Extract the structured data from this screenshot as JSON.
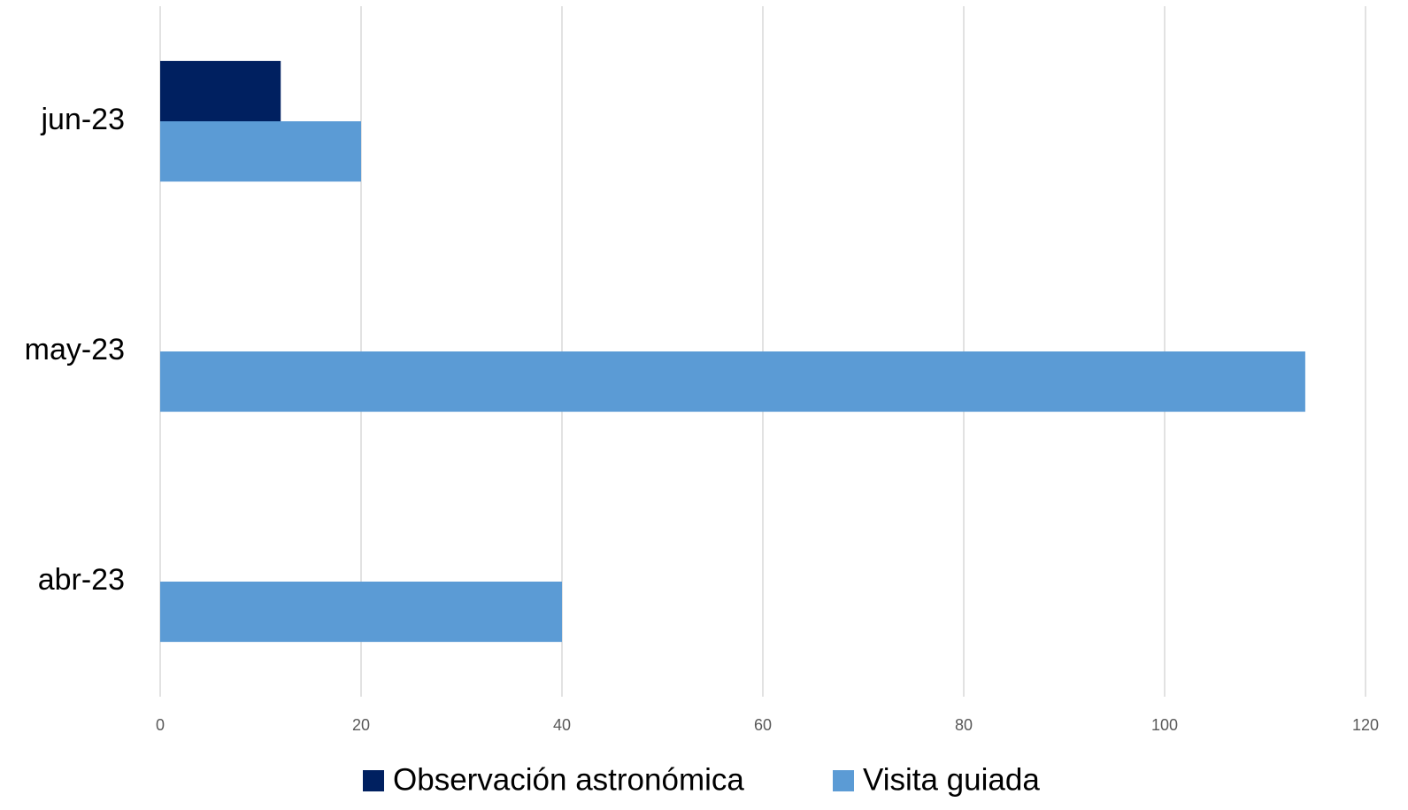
{
  "chart_data": {
    "type": "bar",
    "orientation": "horizontal",
    "categories": [
      "abr-23",
      "may-23",
      "jun-23"
    ],
    "series": [
      {
        "name": "Observación astronómica",
        "color": "#002060",
        "values": [
          null,
          null,
          12
        ]
      },
      {
        "name": "Visita guiada",
        "color": "#5b9bd5",
        "values": [
          40,
          114,
          20
        ]
      }
    ],
    "xlim": [
      0,
      120
    ],
    "xticks": [
      0,
      20,
      40,
      60,
      80,
      100,
      120
    ],
    "grid": true,
    "legend": "bottom"
  }
}
